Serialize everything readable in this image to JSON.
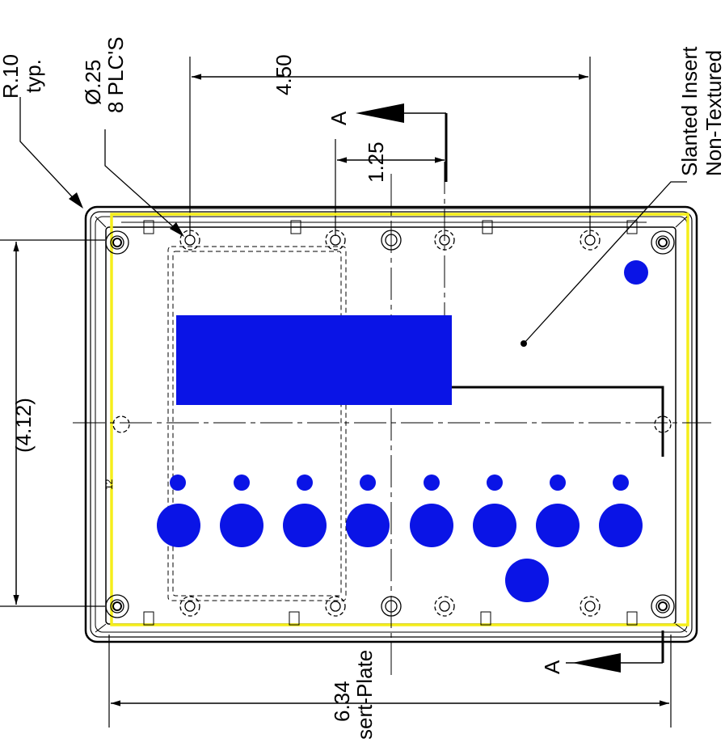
{
  "labels": {
    "radius_line1": "R.10",
    "radius_line2": "typ.",
    "hole_line1": "Ø.25",
    "hole_line2": "8 PLC'S",
    "dim_width_top": "4.50",
    "dim_offset": "1.25",
    "section_top": "A",
    "section_bottom": "A",
    "insert_line1": "Slanted Insert",
    "insert_line2": "Non-Textured",
    "dim_height": "(4.12)",
    "dim_overall": "6.34",
    "plate_label": "sert-Plate"
  },
  "colors": {
    "cutout": "#0a14e6",
    "gasket": "#f5ee1a",
    "line": "#000000"
  }
}
